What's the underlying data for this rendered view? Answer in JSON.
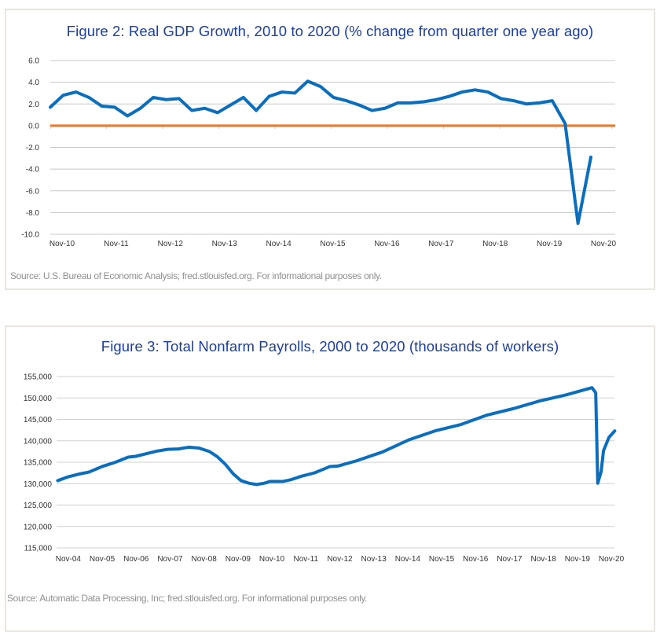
{
  "chart_data": [
    {
      "type": "line",
      "title": "Figure 2:  Real GDP Growth, 2010 to 2020 (% change from quarter one year ago)",
      "source": "Source: U.S. Bureau of Economic Analysis; fred.stlouisfed.org. For informational purposes only.",
      "xlabel": "",
      "ylabel": "",
      "x_tick_labels": [
        "Nov-10",
        "Nov-11",
        "Nov-12",
        "Nov-13",
        "Nov-14",
        "Nov-15",
        "Nov-16",
        "Nov-17",
        "Nov-18",
        "Nov-19",
        "Nov-20"
      ],
      "y_ticks": [
        6.0,
        4.0,
        2.0,
        0.0,
        -2.0,
        -4.0,
        -6.0,
        -8.0,
        -10.0
      ],
      "y_tick_labels": [
        "6.0",
        "4.0",
        "2.0",
        "0.0",
        "-2.0",
        "-4.0",
        "-6.0",
        "-8.0",
        "-10.0"
      ],
      "ylim": [
        -10,
        6
      ],
      "grid": true,
      "reference_line": 0,
      "series": [
        {
          "name": "Real GDP growth",
          "color": "#0a6ebd",
          "values": [
            1.7,
            2.8,
            3.1,
            2.6,
            1.8,
            1.7,
            0.9,
            1.6,
            2.6,
            2.4,
            2.5,
            1.4,
            1.6,
            1.2,
            1.9,
            2.6,
            1.4,
            2.7,
            3.1,
            3.0,
            4.1,
            3.6,
            2.6,
            2.3,
            1.9,
            1.4,
            1.6,
            2.1,
            2.1,
            2.2,
            2.4,
            2.7,
            3.1,
            3.3,
            3.1,
            2.5,
            2.3,
            2.0,
            2.1,
            2.3,
            0.2,
            -9.0,
            -2.9
          ]
        }
      ],
      "reference_color": "#e8792d"
    },
    {
      "type": "line",
      "title": "Figure 3:  Total Nonfarm Payrolls, 2000 to 2020 (thousands of workers)",
      "source": "Source: Automatic Data Processing, Inc; fred.stlouisfed.org. For informational purposes only.",
      "xlabel": "",
      "ylabel": "",
      "x_tick_labels": [
        "Nov-04",
        "Nov-05",
        "Nov-06",
        "Nov-07",
        "Nov-08",
        "Nov-09",
        "Nov-10",
        "Nov-11",
        "Nov-12",
        "Nov-13",
        "Nov-14",
        "Nov-15",
        "Nov-16",
        "Nov-17",
        "Nov-18",
        "Nov-19",
        "Nov-20"
      ],
      "y_ticks": [
        155000,
        150000,
        145000,
        140000,
        135000,
        130000,
        125000,
        120000,
        115000
      ],
      "y_tick_labels": [
        "155,000",
        "150,000",
        "145,000",
        "140,000",
        "135,000",
        "130,000",
        "125,000",
        "120,000",
        "115,000"
      ],
      "ylim": [
        115000,
        155000
      ],
      "xlim": [
        2004.5,
        2020.95
      ],
      "grid": true,
      "series": [
        {
          "name": "Total nonfarm payrolls",
          "color": "#0a6ebd",
          "x": [
            2004.52,
            2004.83,
            2005.13,
            2005.44,
            2005.83,
            2006.22,
            2006.6,
            2006.83,
            2007.14,
            2007.45,
            2007.76,
            2008.07,
            2008.38,
            2008.68,
            2008.99,
            2009.22,
            2009.46,
            2009.69,
            2009.92,
            2010.15,
            2010.38,
            2010.61,
            2010.77,
            2011.15,
            2011.38,
            2011.69,
            2012.08,
            2012.39,
            2012.54,
            2012.77,
            2013.31,
            2014.09,
            2014.86,
            2015.63,
            2016.4,
            2017.17,
            2017.94,
            2018.72,
            2019.49,
            2020.26,
            2020.37,
            2020.43,
            2020.53,
            2020.6,
            2020.76,
            2020.93
          ],
          "values": [
            130700,
            131600,
            132200,
            132700,
            134000,
            135000,
            136200,
            136400,
            137000,
            137600,
            138000,
            138100,
            138500,
            138300,
            137500,
            136300,
            134500,
            132300,
            130700,
            130100,
            129800,
            130100,
            130500,
            130500,
            130900,
            131700,
            132500,
            133500,
            134000,
            134100,
            135300,
            137400,
            140200,
            142300,
            143800,
            146000,
            147500,
            149300,
            150700,
            152400,
            151200,
            130100,
            132800,
            137700,
            140800,
            142300
          ]
        }
      ]
    }
  ]
}
